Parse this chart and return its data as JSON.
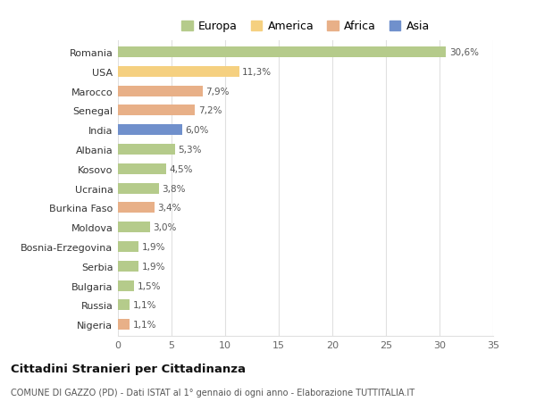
{
  "countries": [
    "Romania",
    "USA",
    "Marocco",
    "Senegal",
    "India",
    "Albania",
    "Kosovo",
    "Ucraina",
    "Burkina Faso",
    "Moldova",
    "Bosnia-Erzegovina",
    "Serbia",
    "Bulgaria",
    "Russia",
    "Nigeria"
  ],
  "values": [
    30.6,
    11.3,
    7.9,
    7.2,
    6.0,
    5.3,
    4.5,
    3.8,
    3.4,
    3.0,
    1.9,
    1.9,
    1.5,
    1.1,
    1.1
  ],
  "labels": [
    "30,6%",
    "11,3%",
    "7,9%",
    "7,2%",
    "6,0%",
    "5,3%",
    "4,5%",
    "3,8%",
    "3,4%",
    "3,0%",
    "1,9%",
    "1,9%",
    "1,5%",
    "1,1%",
    "1,1%"
  ],
  "continents": [
    "Europa",
    "America",
    "Africa",
    "Africa",
    "Asia",
    "Europa",
    "Europa",
    "Europa",
    "Africa",
    "Europa",
    "Europa",
    "Europa",
    "Europa",
    "Europa",
    "Africa"
  ],
  "colors": {
    "Europa": "#b5cb8b",
    "America": "#f5d080",
    "Africa": "#e8b088",
    "Asia": "#7090cc"
  },
  "legend_order": [
    "Europa",
    "America",
    "Africa",
    "Asia"
  ],
  "title": "Cittadini Stranieri per Cittadinanza",
  "subtitle": "COMUNE DI GAZZO (PD) - Dati ISTAT al 1° gennaio di ogni anno - Elaborazione TUTTITALIA.IT",
  "xlim": [
    0,
    35
  ],
  "xticks": [
    0,
    5,
    10,
    15,
    20,
    25,
    30,
    35
  ],
  "background_color": "#ffffff",
  "grid_color": "#e0e0e0"
}
